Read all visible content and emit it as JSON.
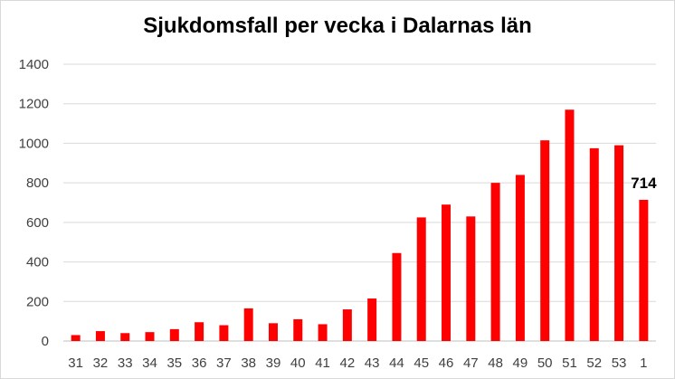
{
  "chart_data": {
    "type": "bar",
    "title": "Sjukdomsfall per vecka i Dalarnas län",
    "xlabel": "",
    "ylabel": "",
    "categories": [
      "31",
      "32",
      "33",
      "34",
      "35",
      "36",
      "37",
      "38",
      "39",
      "40",
      "41",
      "42",
      "43",
      "44",
      "45",
      "46",
      "47",
      "48",
      "49",
      "50",
      "51",
      "52",
      "53",
      "1"
    ],
    "values": [
      30,
      50,
      40,
      45,
      60,
      95,
      80,
      165,
      90,
      110,
      85,
      160,
      215,
      445,
      625,
      690,
      630,
      800,
      840,
      1015,
      1170,
      975,
      990,
      714
    ],
    "ylim": [
      0,
      1400
    ],
    "yticks": [
      0,
      200,
      400,
      600,
      800,
      1000,
      1200,
      1400
    ],
    "grid": true,
    "bar_color": "#ff0000",
    "annotations": [
      {
        "category": "1",
        "text": "714"
      }
    ]
  }
}
